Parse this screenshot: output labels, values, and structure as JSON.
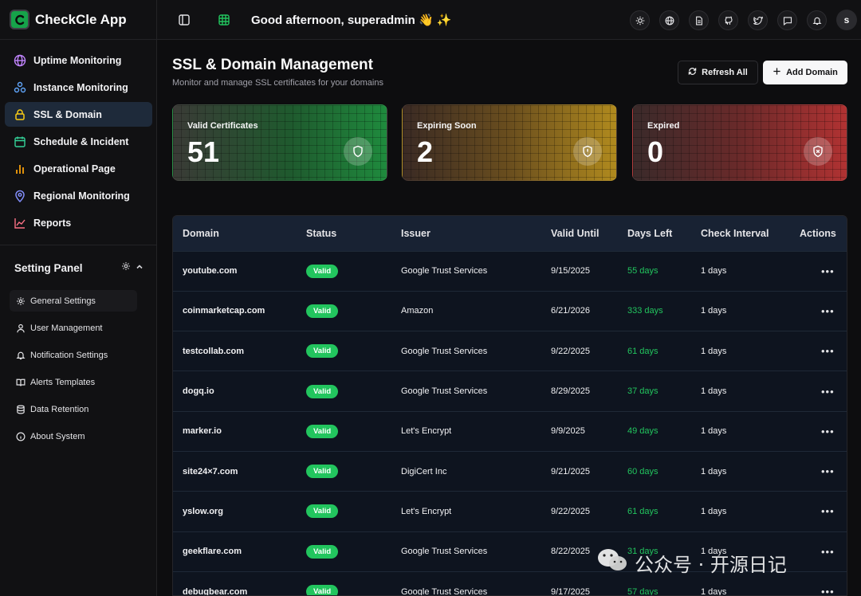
{
  "app": {
    "title": "CheckCle App"
  },
  "nav": [
    {
      "label": "Uptime Monitoring",
      "icon": "globe-icon",
      "color": "#c084fc"
    },
    {
      "label": "Instance Monitoring",
      "icon": "network-icon",
      "color": "#60a5fa"
    },
    {
      "label": "SSL & Domain",
      "icon": "lock-icon",
      "color": "#facc15",
      "active": true
    },
    {
      "label": "Schedule & Incident",
      "icon": "calendar-icon",
      "color": "#34d399"
    },
    {
      "label": "Operational Page",
      "icon": "bar-chart-icon",
      "color": "#f59e0b"
    },
    {
      "label": "Regional Monitoring",
      "icon": "map-pin-icon",
      "color": "#818cf8"
    },
    {
      "label": "Reports",
      "icon": "line-chart-icon",
      "color": "#fb7185"
    }
  ],
  "setting_panel": {
    "title": "Setting Panel",
    "items": [
      {
        "label": "General Settings",
        "icon": "gear-icon",
        "active": true
      },
      {
        "label": "User Management",
        "icon": "user-icon"
      },
      {
        "label": "Notification Settings",
        "icon": "bell-icon"
      },
      {
        "label": "Alerts Templates",
        "icon": "book-icon"
      },
      {
        "label": "Data Retention",
        "icon": "database-icon"
      },
      {
        "label": "About System",
        "icon": "info-icon"
      }
    ]
  },
  "topbar": {
    "greeting": "Good afternoon, superadmin 👋 ✨",
    "avatar_initial": "s"
  },
  "page": {
    "title": "SSL & Domain Management",
    "subtitle": "Monitor and manage SSL certificates for your domains",
    "refresh_label": "Refresh All",
    "add_label": "Add Domain"
  },
  "stats": {
    "valid": {
      "label": "Valid Certificates",
      "value": "51",
      "icon": "shield-icon"
    },
    "expiring": {
      "label": "Expiring Soon",
      "value": "2",
      "icon": "shield-alert-icon"
    },
    "expired": {
      "label": "Expired",
      "value": "0",
      "icon": "shield-x-icon"
    }
  },
  "table": {
    "columns": [
      "Domain",
      "Status",
      "Issuer",
      "Valid Until",
      "Days Left",
      "Check Interval",
      "Actions"
    ],
    "rows": [
      {
        "domain": "youtube.com",
        "status": "Valid",
        "issuer": "Google Trust Services",
        "valid_until": "9/15/2025",
        "days_left": "55 days",
        "interval": "1 days"
      },
      {
        "domain": "coinmarketcap.com",
        "status": "Valid",
        "issuer": "Amazon",
        "valid_until": "6/21/2026",
        "days_left": "333 days",
        "interval": "1 days"
      },
      {
        "domain": "testcollab.com",
        "status": "Valid",
        "issuer": "Google Trust Services",
        "valid_until": "9/22/2025",
        "days_left": "61 days",
        "interval": "1 days"
      },
      {
        "domain": "dogq.io",
        "status": "Valid",
        "issuer": "Google Trust Services",
        "valid_until": "8/29/2025",
        "days_left": "37 days",
        "interval": "1 days"
      },
      {
        "domain": "marker.io",
        "status": "Valid",
        "issuer": "Let's Encrypt",
        "valid_until": "9/9/2025",
        "days_left": "49 days",
        "interval": "1 days"
      },
      {
        "domain": "site24×7.com",
        "status": "Valid",
        "issuer": "DigiCert Inc",
        "valid_until": "9/21/2025",
        "days_left": "60 days",
        "interval": "1 days"
      },
      {
        "domain": "yslow.org",
        "status": "Valid",
        "issuer": "Let's Encrypt",
        "valid_until": "9/22/2025",
        "days_left": "61 days",
        "interval": "1 days"
      },
      {
        "domain": "geekflare.com",
        "status": "Valid",
        "issuer": "Google Trust Services",
        "valid_until": "8/22/2025",
        "days_left": "31 days",
        "interval": "1 days"
      },
      {
        "domain": "debugbear.com",
        "status": "Valid",
        "issuer": "Google Trust Services",
        "valid_until": "9/17/2025",
        "days_left": "57 days",
        "interval": "1 days"
      }
    ]
  },
  "watermark": {
    "text": "公众号 · 开源日记"
  }
}
